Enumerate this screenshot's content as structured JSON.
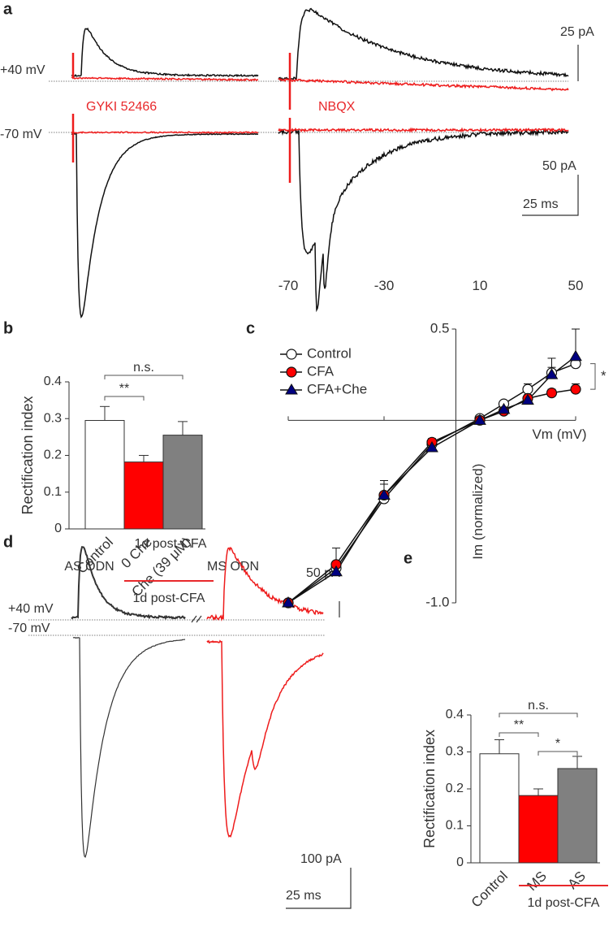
{
  "panel_labels": [
    "a",
    "b",
    "c",
    "d",
    "e"
  ],
  "panel_a": {
    "holding": [
      "+40 mV",
      "-70 mV"
    ],
    "drugs": [
      "GYKI 52466",
      "NBQX"
    ],
    "scale": [
      "25 pA",
      "50 pA",
      "25 ms"
    ]
  },
  "panel_d": {
    "title": "1d post-CFA",
    "groups": [
      "AS ODN",
      "MS ODN"
    ],
    "holding": [
      "+40 mV",
      "-70 mV"
    ],
    "scale": [
      "50 pA",
      "100 pA",
      "25 ms"
    ]
  },
  "chart_data": [
    {
      "type": "bar",
      "ylabel": "Rectification index",
      "categories": [
        "Control",
        "0 Che",
        "Che (39 μM)"
      ],
      "values": [
        0.295,
        0.182,
        0.255
      ],
      "errors": [
        0.038,
        0.018,
        0.037
      ],
      "colors": [
        "#ffffff",
        "#ff0000",
        "#808080"
      ],
      "ylim": [
        0,
        0.4
      ],
      "yticks": [
        0,
        0.1,
        0.2,
        0.3,
        0.4
      ],
      "annotations": [
        "**",
        "n.s."
      ],
      "group_label": "1d post-CFA"
    },
    {
      "type": "line",
      "xlabel": "Vm (mV)",
      "ylabel": "Im (normalized)",
      "x": [
        -70,
        -50,
        -30,
        -10,
        10,
        20,
        30,
        40,
        50
      ],
      "series": [
        {
          "name": "Control",
          "color": "#ffffff",
          "marker": "circle",
          "values": [
            -1.0,
            -0.81,
            -0.43,
            -0.13,
            0.01,
            0.09,
            0.17,
            0.26,
            0.31
          ],
          "errors": [
            0,
            0.03,
            0.03,
            0.02,
            0.01,
            0.01,
            0.03,
            0.08,
            0.03
          ]
        },
        {
          "name": "CFA",
          "color": "#ff0000",
          "marker": "circle",
          "values": [
            -1.0,
            -0.79,
            -0.41,
            -0.12,
            0.0,
            0.05,
            0.12,
            0.15,
            0.17
          ],
          "errors": [
            0,
            0.09,
            0.06,
            0.02,
            0.01,
            0.01,
            0.02,
            0.02,
            0.03
          ]
        },
        {
          "name": "CFA+Che",
          "color": "#000080",
          "marker": "triangle",
          "values": [
            -1.0,
            -0.83,
            -0.41,
            -0.15,
            0.0,
            0.06,
            0.11,
            0.25,
            0.35
          ],
          "errors": [
            0,
            0.04,
            0.08,
            0.02,
            0.01,
            0.01,
            0.02,
            0.04,
            0.15
          ]
        }
      ],
      "xlim": [
        -70,
        50
      ],
      "ylim": [
        -1.0,
        0.5
      ],
      "xticks": [
        -70,
        -30,
        10,
        50
      ],
      "yticks": [
        {
          "value": -1.0,
          "label": "-1.0"
        },
        0.5
      ],
      "annotations": [
        "*"
      ]
    },
    {
      "type": "bar",
      "ylabel": "Rectification index",
      "categories": [
        "Control",
        "MS",
        "AS"
      ],
      "values": [
        0.295,
        0.182,
        0.255
      ],
      "errors": [
        0.038,
        0.018,
        0.033
      ],
      "colors": [
        "#ffffff",
        "#ff0000",
        "#808080"
      ],
      "ylim": [
        0,
        0.4
      ],
      "yticks": [
        0,
        0.1,
        0.2,
        0.3,
        0.4
      ],
      "annotations": [
        "**",
        "*",
        "n.s."
      ],
      "group_label": "1d post-CFA"
    }
  ]
}
